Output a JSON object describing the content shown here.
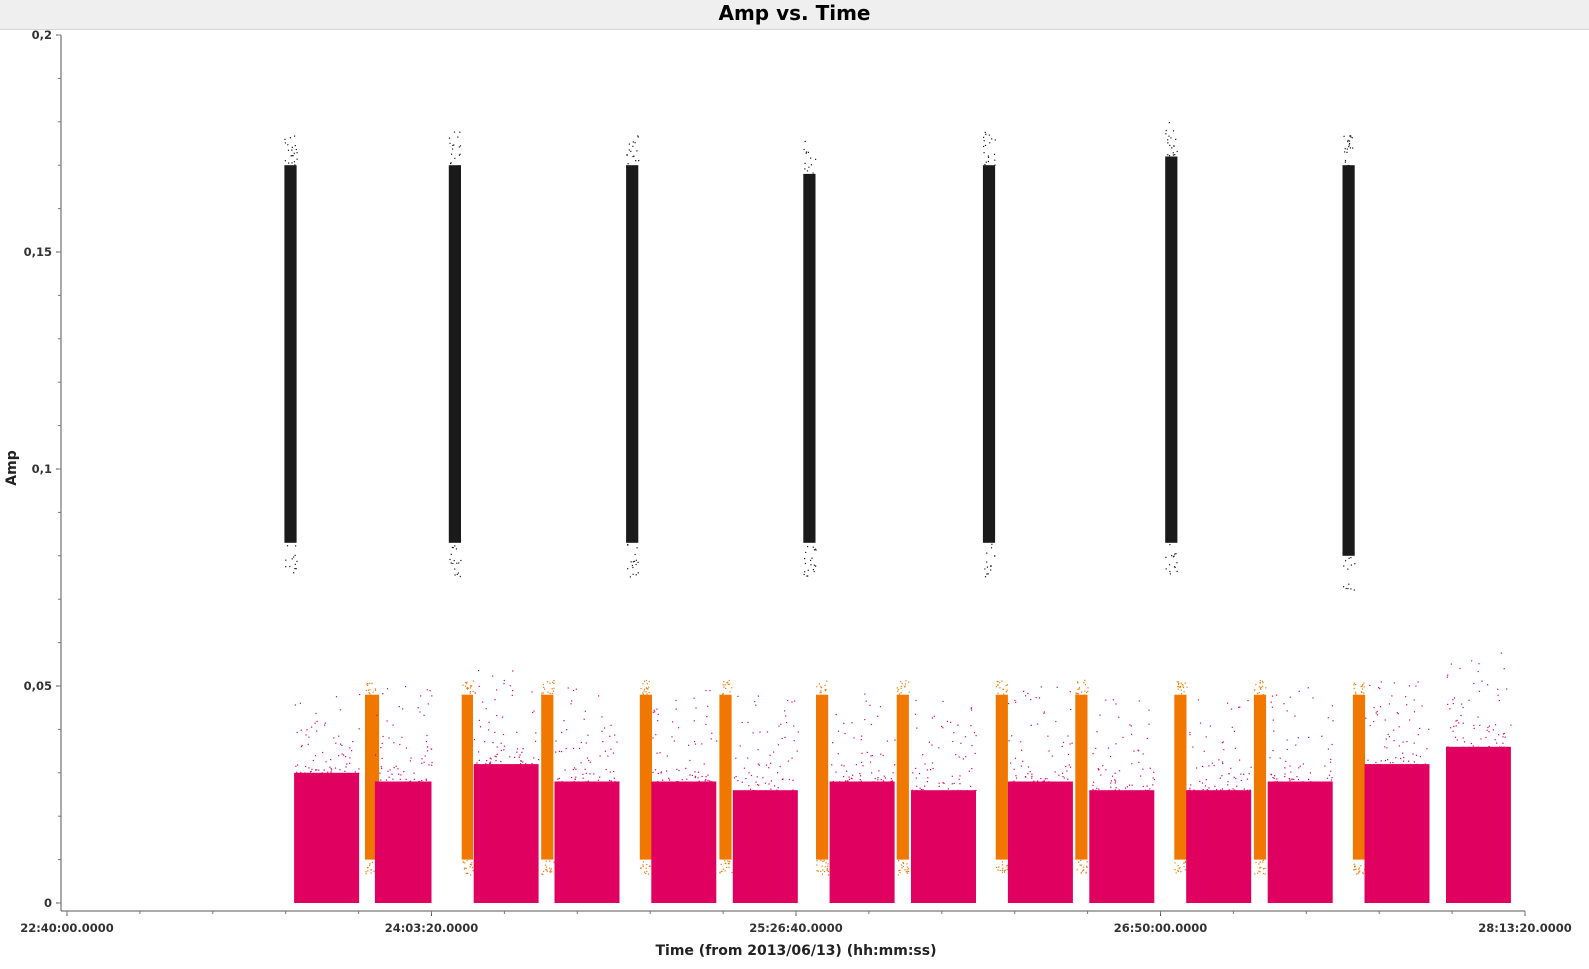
{
  "chart_data": {
    "type": "scatter",
    "title": "Amp vs. Time",
    "xlabel": "Time (from 2013/06/13) (hh:mm:ss)",
    "ylabel": "Amp",
    "xlim": [
      "22:40:00.0000",
      "28:13:20.0000"
    ],
    "ylim": [
      0,
      0.2
    ],
    "x_tick_labels": [
      "22:40:00.0000",
      "24:03:20.0000",
      "25:26:40.0000",
      "26:50:00.0000",
      "28:13:20.0000"
    ],
    "y_tick_labels": [
      "0",
      "0,05",
      "0,1",
      "0,15",
      "0,2"
    ],
    "grid": false,
    "series": [
      {
        "color": "#1a1a1a",
        "scans": [
          {
            "start": "23:29:42",
            "end": "23:32:29",
            "amp_range": [
              0.083,
              0.17
            ]
          },
          {
            "start": "24:07:17",
            "end": "24:10:04",
            "amp_range": [
              0.083,
              0.17
            ]
          },
          {
            "start": "24:47:49",
            "end": "24:50:36",
            "amp_range": [
              0.083,
              0.17
            ]
          },
          {
            "start": "25:28:20",
            "end": "25:31:07",
            "amp_range": [
              0.083,
              0.168
            ]
          },
          {
            "start": "26:09:24",
            "end": "26:12:11",
            "amp_range": [
              0.083,
              0.17
            ]
          },
          {
            "start": "26:51:05",
            "end": "26:53:52",
            "amp_range": [
              0.083,
              0.172
            ]
          },
          {
            "start": "27:31:37",
            "end": "27:34:24",
            "amp_range": [
              0.08,
              0.17
            ]
          }
        ]
      },
      {
        "color": "#f07800",
        "scans": [
          {
            "start": "23:48:08",
            "end": "23:51:21",
            "amp_range": [
              0.01,
              0.048
            ]
          },
          {
            "start": "24:10:14",
            "end": "24:12:49",
            "amp_range": [
              0.01,
              0.048
            ]
          },
          {
            "start": "24:28:25",
            "end": "24:31:12",
            "amp_range": [
              0.01,
              0.048
            ]
          },
          {
            "start": "24:50:57",
            "end": "24:53:44",
            "amp_range": [
              0.01,
              0.048
            ]
          },
          {
            "start": "25:09:09",
            "end": "25:11:56",
            "amp_range": [
              0.01,
              0.048
            ]
          },
          {
            "start": "25:31:15",
            "end": "25:34:02",
            "amp_range": [
              0.01,
              0.048
            ]
          },
          {
            "start": "25:49:41",
            "end": "25:52:28",
            "amp_range": [
              0.01,
              0.048
            ]
          },
          {
            "start": "26:12:19",
            "end": "26:15:06",
            "amp_range": [
              0.01,
              0.048
            ]
          },
          {
            "start": "26:30:31",
            "end": "26:33:18",
            "amp_range": [
              0.01,
              0.048
            ]
          },
          {
            "start": "26:53:09",
            "end": "26:55:56",
            "amp_range": [
              0.01,
              0.048
            ]
          },
          {
            "start": "27:11:21",
            "end": "27:14:08",
            "amp_range": [
              0.01,
              0.048
            ]
          },
          {
            "start": "27:33:59",
            "end": "27:36:46",
            "amp_range": [
              0.01,
              0.048
            ]
          }
        ]
      },
      {
        "color": "#e0005f",
        "scans": [
          {
            "start": "23:31:55",
            "end": "23:46:46",
            "amp_range": [
              0,
              0.03
            ]
          },
          {
            "start": "23:50:24",
            "end": "24:03:20",
            "amp_range": [
              0,
              0.028
            ]
          },
          {
            "start": "24:12:59",
            "end": "24:27:49",
            "amp_range": [
              0,
              0.032
            ]
          },
          {
            "start": "24:31:27",
            "end": "24:46:18",
            "amp_range": [
              0,
              0.028
            ]
          },
          {
            "start": "24:53:35",
            "end": "25:08:26",
            "amp_range": [
              0,
              0.028
            ]
          },
          {
            "start": "25:12:13",
            "end": "25:27:04",
            "amp_range": [
              0,
              0.026
            ]
          },
          {
            "start": "25:34:21",
            "end": "25:49:12",
            "amp_range": [
              0,
              0.028
            ]
          },
          {
            "start": "25:52:58",
            "end": "26:07:49",
            "amp_range": [
              0,
              0.026
            ]
          },
          {
            "start": "26:15:07",
            "end": "26:29:58",
            "amp_range": [
              0,
              0.028
            ]
          },
          {
            "start": "26:33:44",
            "end": "26:48:35",
            "amp_range": [
              0,
              0.026
            ]
          },
          {
            "start": "26:55:53",
            "end": "27:10:44",
            "amp_range": [
              0,
              0.026
            ]
          },
          {
            "start": "27:14:30",
            "end": "27:29:21",
            "amp_range": [
              0,
              0.028
            ]
          },
          {
            "start": "27:36:39",
            "end": "27:51:30",
            "amp_range": [
              0,
              0.032
            ]
          },
          {
            "start": "27:55:16",
            "end": "28:10:06",
            "amp_range": [
              0,
              0.036
            ]
          }
        ]
      }
    ]
  }
}
